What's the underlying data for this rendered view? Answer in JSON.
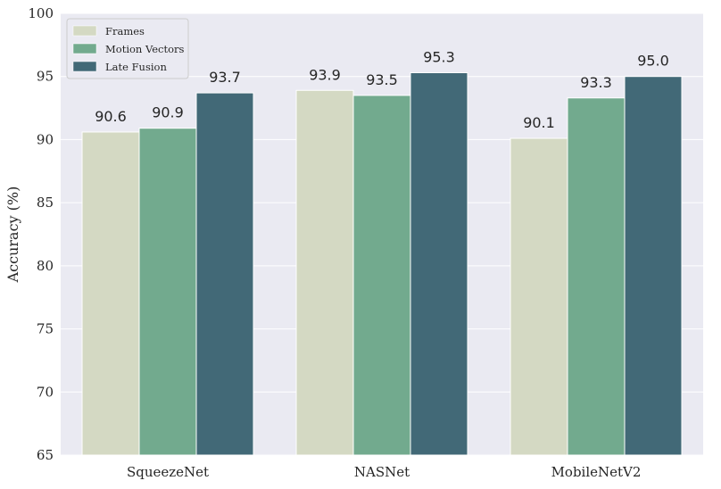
{
  "chart_data": {
    "type": "bar",
    "title": "",
    "xlabel": "",
    "ylabel": "Accuracy (%)",
    "ylim": [
      65,
      100
    ],
    "yticks": [
      65,
      70,
      75,
      80,
      85,
      90,
      95,
      100
    ],
    "categories": [
      "SqueezeNet",
      "NASNet",
      "MobileNetV2"
    ],
    "series": [
      {
        "name": "Frames",
        "values": [
          90.6,
          93.9,
          90.1
        ],
        "color": "#d4d9c3"
      },
      {
        "name": "Motion Vectors",
        "values": [
          90.9,
          93.5,
          93.3
        ],
        "color": "#72aa8e"
      },
      {
        "name": "Late Fusion",
        "values": [
          93.7,
          95.3,
          95.0
        ],
        "color": "#426977"
      }
    ],
    "data_labels": [
      [
        "90.6",
        "93.9",
        "90.1"
      ],
      [
        "90.9",
        "93.5",
        "93.3"
      ],
      [
        "93.7",
        "95.3",
        "95.0"
      ]
    ],
    "grid": true,
    "background_color": "#eaeaf2",
    "legend": {
      "position": "top-left"
    }
  }
}
